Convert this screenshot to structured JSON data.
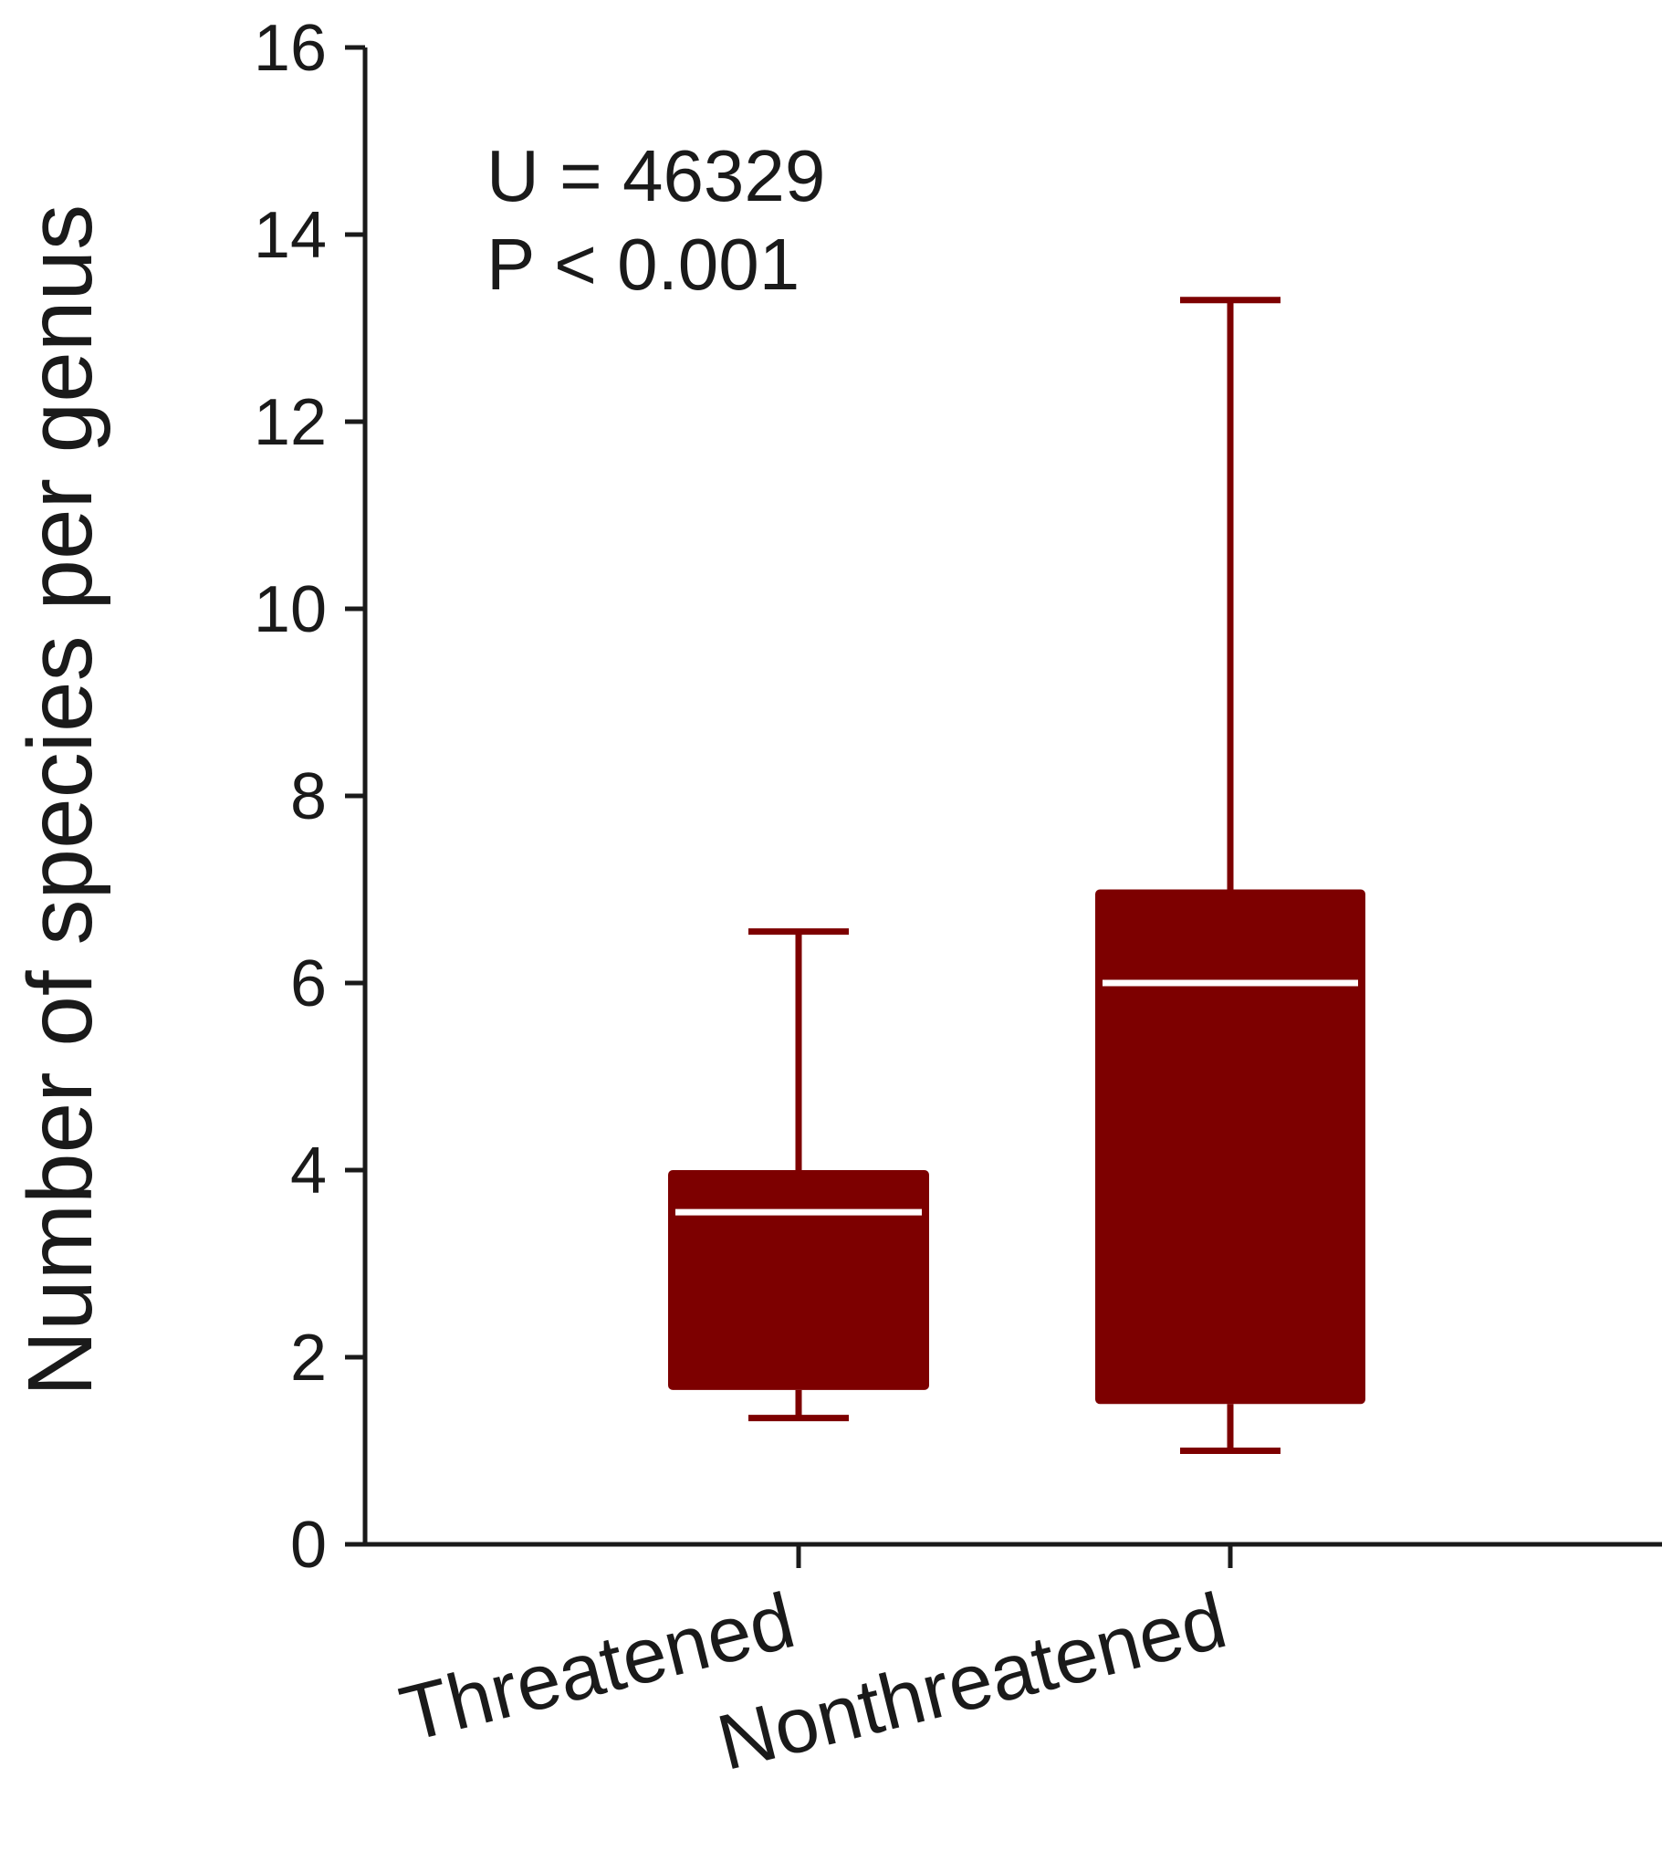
{
  "chart_data": {
    "type": "box",
    "ylabel": "Number of species per genus",
    "ylim": [
      0,
      16
    ],
    "yticks": [
      "0",
      "2",
      "4",
      "6",
      "8",
      "10",
      "12",
      "14",
      "16"
    ],
    "categories": [
      "Threatened",
      "Nonthreatened"
    ],
    "boxes": [
      {
        "category": "Threatened",
        "whisker_low": 1.35,
        "q1": 1.65,
        "median": 3.55,
        "q3": 4.0,
        "whisker_high": 6.55
      },
      {
        "category": "Nonthreatened",
        "whisker_low": 1.0,
        "q1": 1.5,
        "median": 6.0,
        "q3": 7.0,
        "whisker_high": 13.3
      }
    ],
    "annotations": [
      "U = 46329",
      "P < 0.001"
    ],
    "grid": false,
    "colors": {
      "box": "#7d0000",
      "median": "#ffffff",
      "axis": "#1a1a1a"
    }
  }
}
